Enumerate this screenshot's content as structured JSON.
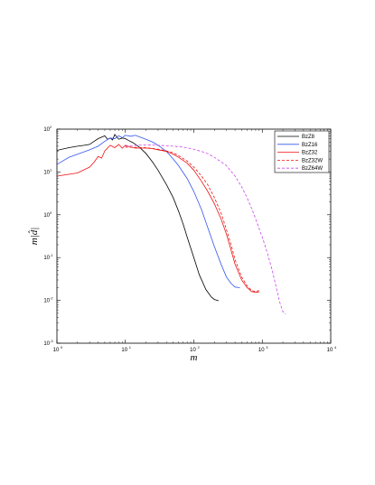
{
  "chart_data": {
    "type": "line",
    "xlabel": "m",
    "ylabel": "m|d̂|",
    "xscale": "log",
    "yscale": "log",
    "xlim": [
      1,
      10000
    ],
    "ylim": [
      0.001,
      100
    ],
    "grid": false,
    "legend_position": "top-right",
    "x_ticks": [
      {
        "base": "10",
        "exp": "0",
        "value": 1
      },
      {
        "base": "10",
        "exp": "1",
        "value": 10
      },
      {
        "base": "10",
        "exp": "2",
        "value": 100
      },
      {
        "base": "10",
        "exp": "3",
        "value": 1000
      },
      {
        "base": "10",
        "exp": "4",
        "value": 10000
      }
    ],
    "y_ticks": [
      {
        "base": "10",
        "exp": "-3",
        "value": 0.001
      },
      {
        "base": "10",
        "exp": "-2",
        "value": 0.01
      },
      {
        "base": "10",
        "exp": "-1",
        "value": 0.1
      },
      {
        "base": "10",
        "exp": "0",
        "value": 1
      },
      {
        "base": "10",
        "exp": "1",
        "value": 10
      },
      {
        "base": "10",
        "exp": "2",
        "value": 100
      }
    ],
    "series": [
      {
        "name": "BzZ8",
        "color": "#000000",
        "dash": "solid",
        "points": [
          [
            1,
            32
          ],
          [
            1.5,
            37
          ],
          [
            2,
            40
          ],
          [
            2.5,
            42
          ],
          [
            3,
            44
          ],
          [
            3.5,
            52
          ],
          [
            4,
            60
          ],
          [
            5,
            70
          ],
          [
            5.5,
            58
          ],
          [
            6,
            62
          ],
          [
            6.5,
            56
          ],
          [
            7,
            75
          ],
          [
            8,
            58
          ],
          [
            9,
            62
          ],
          [
            10,
            60
          ],
          [
            11,
            55
          ],
          [
            13,
            48
          ],
          [
            16,
            38
          ],
          [
            20,
            27
          ],
          [
            25,
            17
          ],
          [
            30,
            11
          ],
          [
            40,
            5
          ],
          [
            50,
            2.5
          ],
          [
            60,
            1.2
          ],
          [
            70,
            0.6
          ],
          [
            80,
            0.3
          ],
          [
            100,
            0.1
          ],
          [
            120,
            0.04
          ],
          [
            150,
            0.018
          ],
          [
            180,
            0.012
          ],
          [
            200,
            0.0105
          ],
          [
            230,
            0.0098
          ]
        ]
      },
      {
        "name": "BzZ16",
        "color": "#3355ee",
        "dash": "solid",
        "points": [
          [
            1,
            15
          ],
          [
            1.5,
            22
          ],
          [
            2,
            26
          ],
          [
            3,
            33
          ],
          [
            4,
            40
          ],
          [
            5,
            52
          ],
          [
            6,
            62
          ],
          [
            7,
            60
          ],
          [
            8,
            70
          ],
          [
            9,
            63
          ],
          [
            10,
            72
          ],
          [
            12,
            68
          ],
          [
            14,
            72
          ],
          [
            16,
            66
          ],
          [
            20,
            58
          ],
          [
            25,
            50
          ],
          [
            30,
            42
          ],
          [
            40,
            30
          ],
          [
            50,
            20
          ],
          [
            60,
            14
          ],
          [
            80,
            7
          ],
          [
            100,
            3.5
          ],
          [
            130,
            1.3
          ],
          [
            160,
            0.5
          ],
          [
            200,
            0.18
          ],
          [
            250,
            0.07
          ],
          [
            300,
            0.035
          ],
          [
            350,
            0.025
          ],
          [
            400,
            0.0205
          ],
          [
            470,
            0.0198
          ]
        ]
      },
      {
        "name": "BzZ32",
        "color": "#ee1111",
        "dash": "solid",
        "points": [
          [
            1,
            8
          ],
          [
            2,
            9.5
          ],
          [
            3,
            13
          ],
          [
            3.5,
            17
          ],
          [
            4,
            23
          ],
          [
            4.5,
            21
          ],
          [
            5,
            31
          ],
          [
            6,
            42
          ],
          [
            7,
            37
          ],
          [
            8,
            44
          ],
          [
            9,
            36
          ],
          [
            10,
            42
          ],
          [
            12,
            38
          ],
          [
            14,
            36
          ],
          [
            16,
            36
          ],
          [
            20,
            36
          ],
          [
            25,
            35
          ],
          [
            30,
            33
          ],
          [
            40,
            30
          ],
          [
            50,
            26
          ],
          [
            60,
            22
          ],
          [
            80,
            16
          ],
          [
            100,
            11
          ],
          [
            130,
            6
          ],
          [
            160,
            3.5
          ],
          [
            200,
            1.8
          ],
          [
            250,
            0.8
          ],
          [
            300,
            0.35
          ],
          [
            350,
            0.15
          ],
          [
            400,
            0.07
          ],
          [
            500,
            0.03
          ],
          [
            600,
            0.02
          ],
          [
            700,
            0.016
          ],
          [
            800,
            0.0155
          ],
          [
            900,
            0.0158
          ]
        ]
      },
      {
        "name": "BzZ32W",
        "color": "#ee1111",
        "dash": "dashed",
        "points": [
          [
            10,
            38
          ],
          [
            20,
            37
          ],
          [
            30,
            34
          ],
          [
            40,
            31
          ],
          [
            50,
            28
          ],
          [
            60,
            24
          ],
          [
            80,
            18
          ],
          [
            100,
            13
          ],
          [
            130,
            8
          ],
          [
            160,
            5
          ],
          [
            200,
            2.5
          ],
          [
            250,
            1.1
          ],
          [
            300,
            0.45
          ],
          [
            350,
            0.2
          ],
          [
            400,
            0.09
          ],
          [
            500,
            0.035
          ],
          [
            600,
            0.022
          ],
          [
            700,
            0.017
          ],
          [
            800,
            0.016
          ],
          [
            900,
            0.017
          ]
        ]
      },
      {
        "name": "BzZ64W",
        "color": "#cc44ee",
        "dash": "dashed",
        "points": [
          [
            10,
            40
          ],
          [
            15,
            42
          ],
          [
            20,
            43
          ],
          [
            30,
            42
          ],
          [
            40,
            41
          ],
          [
            50,
            40
          ],
          [
            70,
            38
          ],
          [
            100,
            34
          ],
          [
            150,
            28
          ],
          [
            200,
            22
          ],
          [
            300,
            14
          ],
          [
            400,
            8
          ],
          [
            500,
            4.5
          ],
          [
            600,
            2.5
          ],
          [
            700,
            1.4
          ],
          [
            800,
            0.8
          ],
          [
            1000,
            0.3
          ],
          [
            1200,
            0.12
          ],
          [
            1400,
            0.05
          ],
          [
            1600,
            0.02
          ],
          [
            1800,
            0.009
          ],
          [
            2000,
            0.0055
          ],
          [
            2200,
            0.0048
          ]
        ]
      }
    ]
  }
}
